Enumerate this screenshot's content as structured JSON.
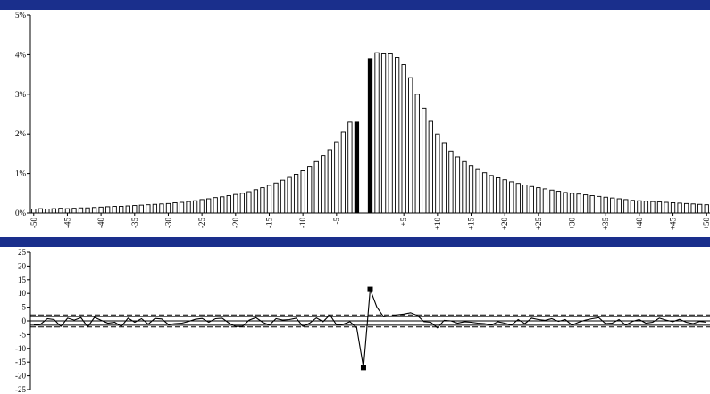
{
  "chart_data": [
    {
      "type": "bar",
      "title": "",
      "xlabel": "",
      "ylabel": "",
      "ylim": [
        0,
        5
      ],
      "y_tick_labels": [
        "0%",
        "1%",
        "2%",
        "3%",
        "4%",
        "5%"
      ],
      "x_tick_labels": [
        "-50",
        "-45",
        "-40",
        "-35",
        "-30",
        "-25",
        "-20",
        "-15",
        "-10",
        "-5",
        "+5",
        "+10",
        "+15",
        "+20",
        "+25",
        "+30",
        "+35",
        "+40",
        "+45",
        "+50"
      ],
      "x": [
        -50,
        -49,
        -48,
        -47,
        -46,
        -45,
        -44,
        -43,
        -42,
        -41,
        -40,
        -39,
        -38,
        -37,
        -36,
        -35,
        -34,
        -33,
        -32,
        -31,
        -30,
        -29,
        -28,
        -27,
        -26,
        -25,
        -24,
        -23,
        -22,
        -21,
        -20,
        -19,
        -18,
        -17,
        -16,
        -15,
        -14,
        -13,
        -12,
        -11,
        -10,
        -9,
        -8,
        -7,
        -6,
        -5,
        -4,
        -3,
        -2,
        -1,
        0,
        1,
        2,
        3,
        4,
        5,
        6,
        7,
        8,
        9,
        10,
        11,
        12,
        13,
        14,
        15,
        16,
        17,
        18,
        19,
        20,
        21,
        22,
        23,
        24,
        25,
        26,
        27,
        28,
        29,
        30,
        31,
        32,
        33,
        34,
        35,
        36,
        37,
        38,
        39,
        40,
        41,
        42,
        43,
        44,
        45,
        46,
        47,
        48,
        49,
        50
      ],
      "values": [
        0.1,
        0.11,
        0.1,
        0.11,
        0.12,
        0.11,
        0.12,
        0.13,
        0.13,
        0.14,
        0.15,
        0.16,
        0.17,
        0.17,
        0.18,
        0.19,
        0.2,
        0.21,
        0.22,
        0.23,
        0.24,
        0.26,
        0.27,
        0.29,
        0.31,
        0.34,
        0.36,
        0.39,
        0.41,
        0.44,
        0.47,
        0.5,
        0.54,
        0.59,
        0.64,
        0.7,
        0.76,
        0.83,
        0.9,
        0.98,
        1.07,
        1.18,
        1.3,
        1.45,
        1.6,
        1.8,
        2.05,
        2.3,
        2.3,
        0,
        3.9,
        4.05,
        4.02,
        4.02,
        3.93,
        3.75,
        3.42,
        3.0,
        2.65,
        2.32,
        2.0,
        1.78,
        1.57,
        1.42,
        1.3,
        1.2,
        1.1,
        1.02,
        0.95,
        0.89,
        0.84,
        0.79,
        0.75,
        0.71,
        0.67,
        0.64,
        0.61,
        0.58,
        0.55,
        0.52,
        0.5,
        0.48,
        0.46,
        0.44,
        0.42,
        0.4,
        0.38,
        0.36,
        0.34,
        0.32,
        0.31,
        0.3,
        0.29,
        0.28,
        0.27,
        0.26,
        0.25,
        0.24,
        0.23,
        0.22,
        0.21
      ],
      "highlight_x": [
        -2,
        0
      ],
      "bar_color": "#ffffff",
      "highlight_color": "#000000",
      "grid": false
    },
    {
      "type": "line",
      "title": "",
      "xlabel": "",
      "ylabel": "",
      "ylim": [
        -25,
        25
      ],
      "y_ticks": [
        25,
        20,
        15,
        10,
        5,
        0,
        -5,
        -10,
        -15,
        -20,
        -25
      ],
      "y_tick_labels": [
        "25",
        "20",
        "15",
        "10",
        "5",
        "0",
        "-5",
        "-10",
        "-15",
        "-20",
        "-25"
      ],
      "x": [
        -50,
        -49,
        -48,
        -47,
        -46,
        -45,
        -44,
        -43,
        -42,
        -41,
        -40,
        -39,
        -38,
        -37,
        -36,
        -35,
        -34,
        -33,
        -32,
        -31,
        -30,
        -29,
        -28,
        -27,
        -26,
        -25,
        -24,
        -23,
        -22,
        -21,
        -20,
        -19,
        -18,
        -17,
        -16,
        -15,
        -14,
        -13,
        -12,
        -11,
        -10,
        -9,
        -8,
        -7,
        -6,
        -5,
        -4,
        -3,
        -2,
        -1,
        0,
        1,
        2,
        3,
        4,
        5,
        6,
        7,
        8,
        9,
        10,
        11,
        12,
        13,
        14,
        15,
        16,
        17,
        18,
        19,
        20,
        21,
        22,
        23,
        24,
        25,
        26,
        27,
        28,
        29,
        30,
        31,
        32,
        33,
        34,
        35,
        36,
        37,
        38,
        39,
        40,
        41,
        42,
        43,
        44,
        45,
        46,
        47,
        48,
        49,
        50
      ],
      "values": [
        -1.5,
        -1.2,
        0.8,
        0.5,
        -2.0,
        1.0,
        0.3,
        1.2,
        -2.2,
        1.3,
        0.2,
        -0.8,
        -0.5,
        -2.0,
        1.0,
        -0.5,
        0.8,
        -1.2,
        0.9,
        0.7,
        -1.3,
        -1.0,
        -0.8,
        -0.2,
        0.6,
        0.9,
        -0.5,
        0.8,
        1.0,
        -0.8,
        -2.0,
        -2.0,
        0.3,
        1.2,
        -0.5,
        -1.5,
        0.8,
        0.3,
        0.5,
        1.0,
        -2.0,
        -0.8,
        1.1,
        -0.3,
        2.2,
        -1.5,
        -1.2,
        -0.3,
        -2.5,
        -17.0,
        11.5,
        5.0,
        1.5,
        1.8,
        2.2,
        2.5,
        3.0,
        2.0,
        -0.3,
        -0.5,
        -2.5,
        0.2,
        0.0,
        -0.8,
        -0.3,
        -0.5,
        -0.8,
        -1.0,
        -1.5,
        -0.3,
        -0.8,
        -1.5,
        0.5,
        -1.0,
        1.0,
        0.5,
        0.2,
        0.8,
        -0.2,
        0.5,
        -1.5,
        -0.5,
        0.3,
        0.8,
        1.2,
        -1.0,
        -0.8,
        0.5,
        -1.5,
        -0.2,
        0.5,
        -0.8,
        -0.5,
        1.0,
        0.3,
        -0.3,
        0.6,
        -0.5,
        -1.0,
        -0.2,
        -0.5
      ],
      "markers_x": [
        -1,
        0
      ],
      "reference_lines": [
        {
          "y": 2.2,
          "style": "dashed"
        },
        {
          "y": 1.6,
          "style": "solid"
        },
        {
          "y": -1.6,
          "style": "solid"
        },
        {
          "y": -2.2,
          "style": "dashed"
        }
      ],
      "line_color": "#000000",
      "grid": false
    }
  ]
}
